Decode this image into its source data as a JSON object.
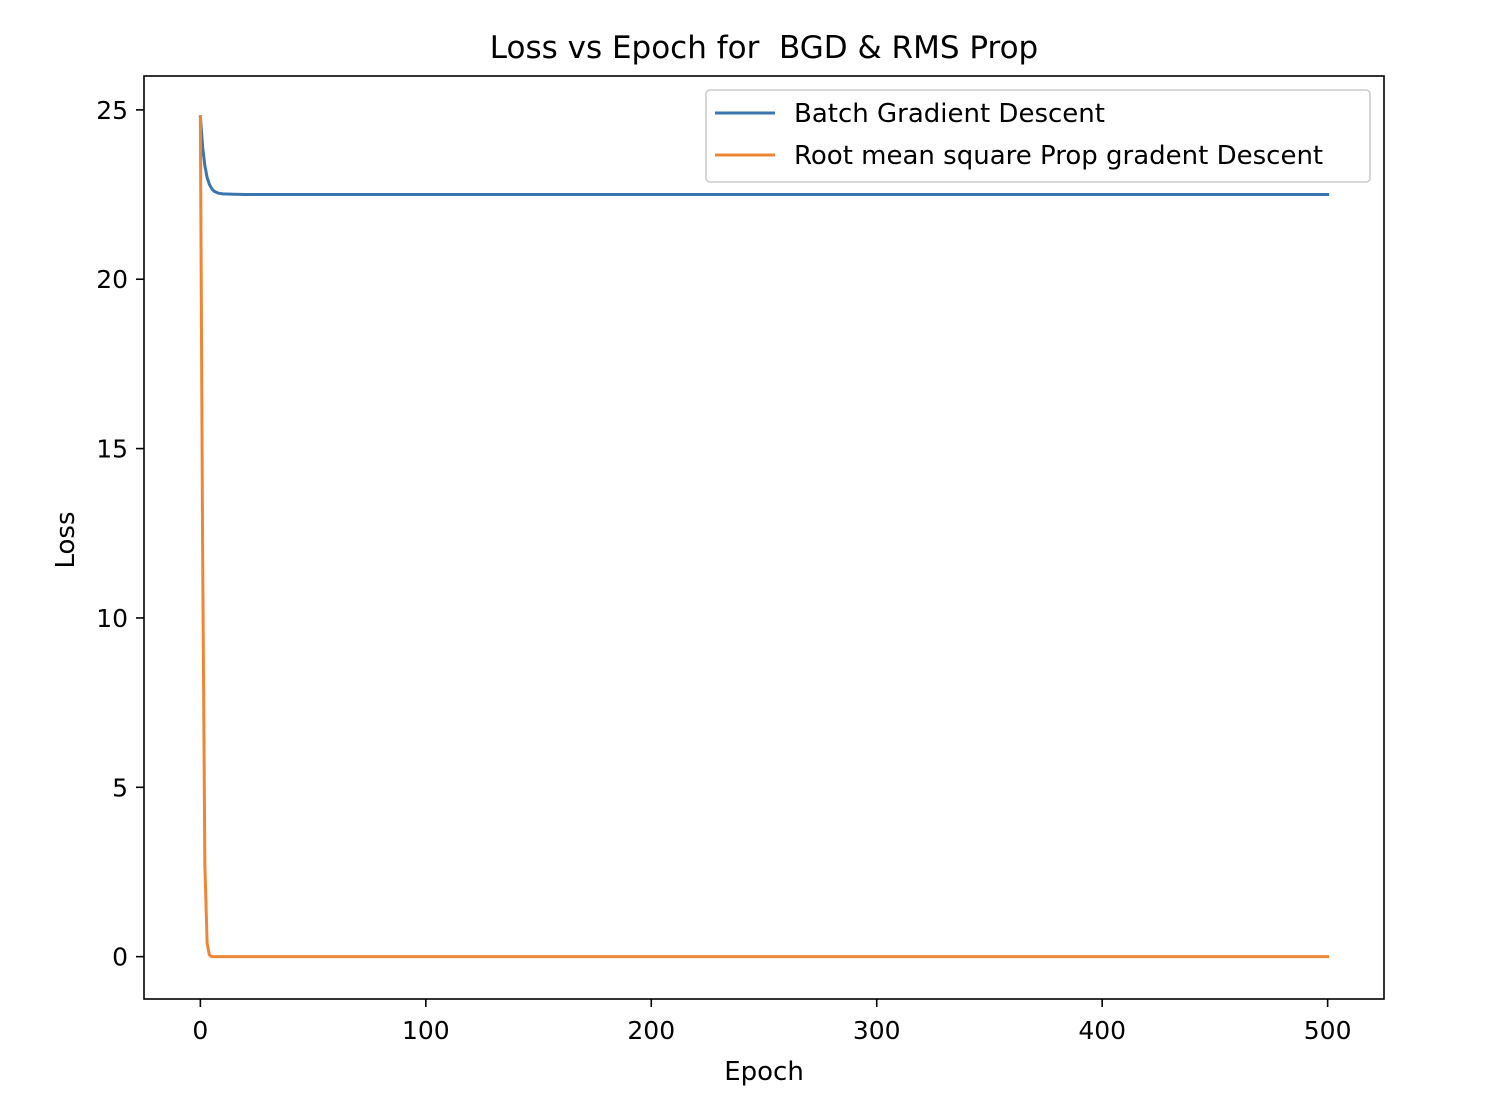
{
  "chart_data": {
    "type": "line",
    "title": "Loss vs Epoch for  BGD & RMS Prop",
    "xlabel": "Epoch",
    "ylabel": "Loss",
    "xlim": [
      -25,
      525
    ],
    "ylim": [
      -1.25,
      26.0
    ],
    "xticks": [
      0,
      100,
      200,
      300,
      400,
      500
    ],
    "yticks": [
      0,
      5,
      10,
      15,
      20,
      25
    ],
    "grid": false,
    "legend_position": "top-right",
    "series": [
      {
        "name": "Batch Gradient Descent",
        "color": "#3a75af",
        "x": [
          0,
          1,
          2,
          3,
          4,
          5,
          6,
          8,
          10,
          15,
          20,
          30,
          50,
          100,
          200,
          300,
          400,
          500
        ],
        "y": [
          24.8,
          23.9,
          23.35,
          23.0,
          22.8,
          22.68,
          22.6,
          22.54,
          22.52,
          22.51,
          22.5,
          22.5,
          22.5,
          22.5,
          22.5,
          22.5,
          22.5,
          22.5
        ]
      },
      {
        "name": "Root mean square Prop gradent Descent",
        "color": "#ef8636",
        "x": [
          0,
          1,
          2,
          3,
          4,
          5,
          10,
          50,
          100,
          200,
          300,
          400,
          500
        ],
        "y": [
          24.8,
          12.0,
          2.7,
          0.4,
          0.05,
          0.0,
          0.0,
          0.0,
          0.0,
          0.0,
          0.0,
          0.0,
          0.0
        ]
      }
    ]
  }
}
